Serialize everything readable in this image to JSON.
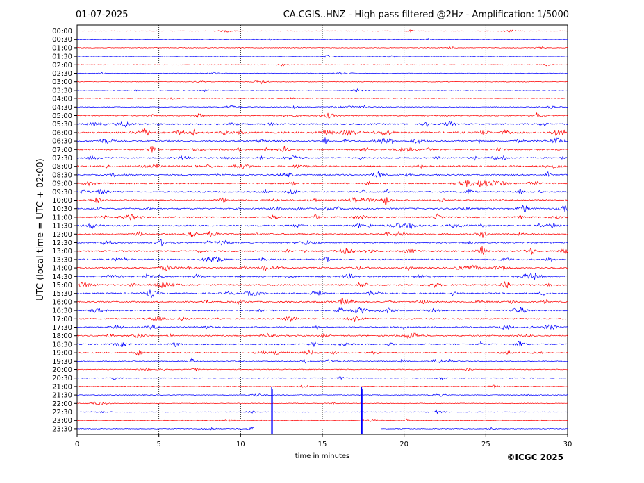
{
  "chart_data": {
    "type": "line",
    "date": "01-07-2025",
    "title": "CA.CGIS..HNZ - High pass filtered @2Hz - Amplification: 1/5000",
    "xlabel": "time in minutes",
    "ylabel": "UTC (local time = UTC + 02:00)",
    "copyright": "©ICGC 2025",
    "xlim": [
      0,
      30
    ],
    "x_ticks": [
      "0",
      "5",
      "10",
      "15",
      "20",
      "25",
      "30"
    ],
    "grid": "vertical dotted lines at 5-minute intervals",
    "colors": {
      "odd_rows": "#ff0000",
      "even_rows": "#0000ff",
      "grid": "#000000"
    },
    "rows": [
      "00:00",
      "00:30",
      "01:00",
      "01:30",
      "02:00",
      "02:30",
      "03:00",
      "03:30",
      "04:00",
      "04:30",
      "05:00",
      "05:30",
      "06:00",
      "06:30",
      "07:00",
      "07:30",
      "08:00",
      "08:30",
      "09:00",
      "09:30",
      "10:00",
      "10:30",
      "11:00",
      "11:30",
      "12:00",
      "12:30",
      "13:00",
      "13:30",
      "14:00",
      "14:30",
      "15:00",
      "15:30",
      "16:00",
      "16:30",
      "17:00",
      "17:30",
      "18:00",
      "18:30",
      "19:00",
      "19:30",
      "20:00",
      "20:30",
      "21:00",
      "21:30",
      "22:00",
      "22:30",
      "23:00",
      "23:30"
    ],
    "row_activity": [
      0.05,
      0.05,
      0.06,
      0.05,
      0.08,
      0.08,
      0.09,
      0.08,
      0.15,
      0.25,
      0.45,
      0.6,
      0.85,
      0.7,
      0.65,
      0.55,
      0.7,
      0.5,
      0.55,
      0.5,
      0.6,
      0.6,
      0.6,
      0.65,
      0.6,
      0.55,
      0.65,
      0.6,
      0.6,
      0.55,
      0.65,
      0.6,
      0.55,
      0.55,
      0.5,
      0.5,
      0.5,
      0.5,
      0.45,
      0.35,
      0.2,
      0.15,
      0.1,
      0.15,
      0.1,
      0.1,
      0.08,
      0.12
    ],
    "spikes": [
      {
        "row": "21:30",
        "minute": 11.9,
        "amplitude": "large"
      },
      {
        "row": "21:30",
        "minute": 17.4,
        "amplitude": "large"
      }
    ],
    "data_gap": {
      "row": "23:30",
      "from_minute": 10.8,
      "to_minute": 18.6
    }
  }
}
